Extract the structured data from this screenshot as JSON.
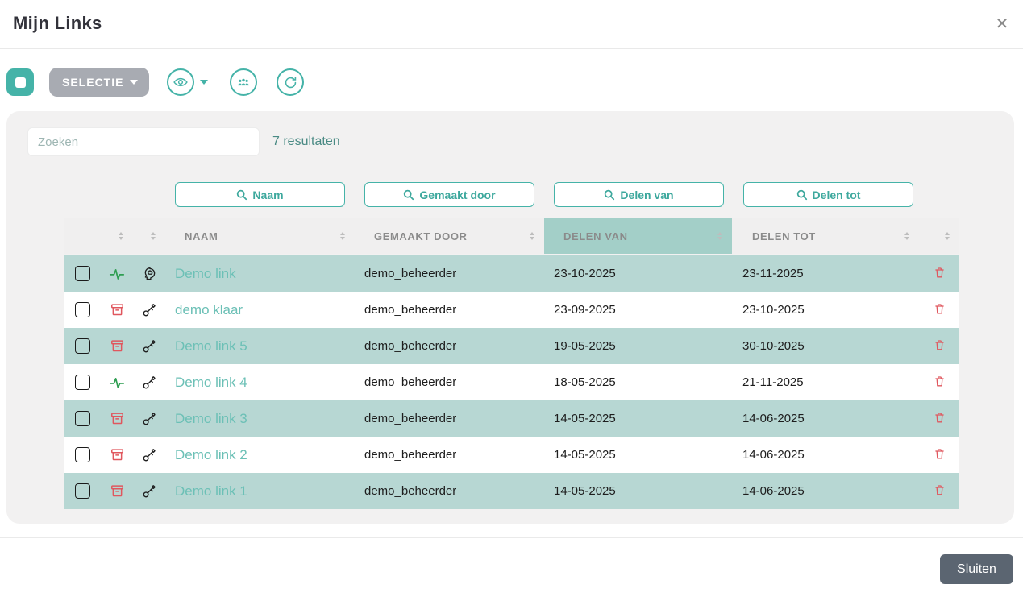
{
  "modal": {
    "title": "Mijn Links"
  },
  "toolbar": {
    "select_all_icon": "square-icon",
    "selectie_label": "SELECTIE",
    "view_icon": "eye-icon",
    "groups_icon": "people-icon",
    "refresh_icon": "refresh-icon"
  },
  "search": {
    "placeholder": "Zoeken",
    "results_count": "7 resultaten"
  },
  "filters": {
    "naam": "Naam",
    "gemaakt_door": "Gemaakt door",
    "delen_van": "Delen van",
    "delen_tot": "Delen tot"
  },
  "table": {
    "headers": {
      "naam": "NAAM",
      "gemaakt_door": "GEMAAKT DOOR",
      "delen_van": "DELEN VAN",
      "delen_tot": "DELEN TOT"
    },
    "sorted_by": "DELEN VAN",
    "rows": [
      {
        "name": "Demo link",
        "created_by": "demo_beheerder",
        "share_from": "23-10-2025",
        "share_to": "23-11-2025",
        "status_icon": "pulse-icon",
        "type_icon": "head-brain-icon"
      },
      {
        "name": "demo klaar",
        "created_by": "demo_beheerder",
        "share_from": "23-09-2025",
        "share_to": "23-10-2025",
        "status_icon": "archive-icon",
        "type_icon": "key-icon"
      },
      {
        "name": "Demo link 5",
        "created_by": "demo_beheerder",
        "share_from": "19-05-2025",
        "share_to": "30-10-2025",
        "status_icon": "archive-icon",
        "type_icon": "key-icon"
      },
      {
        "name": "Demo link 4",
        "created_by": "demo_beheerder",
        "share_from": "18-05-2025",
        "share_to": "21-11-2025",
        "status_icon": "pulse-icon",
        "type_icon": "key-icon"
      },
      {
        "name": "Demo link 3",
        "created_by": "demo_beheerder",
        "share_from": "14-05-2025",
        "share_to": "14-06-2025",
        "status_icon": "archive-icon",
        "type_icon": "key-icon"
      },
      {
        "name": "Demo link 2",
        "created_by": "demo_beheerder",
        "share_from": "14-05-2025",
        "share_to": "14-06-2025",
        "status_icon": "archive-icon",
        "type_icon": "key-icon"
      },
      {
        "name": "Demo link 1",
        "created_by": "demo_beheerder",
        "share_from": "14-05-2025",
        "share_to": "14-06-2025",
        "status_icon": "archive-icon",
        "type_icon": "key-icon"
      }
    ]
  },
  "footer": {
    "close_label": "Sluiten"
  },
  "colors": {
    "accent": "#45b3a8",
    "row_highlight": "#b7d7d3",
    "header_highlight": "#a3cfc8",
    "danger": "#e0575e",
    "success": "#2f9e52",
    "selectie_gray": "#a8abb2",
    "sluiten_gray": "#5b6571"
  }
}
